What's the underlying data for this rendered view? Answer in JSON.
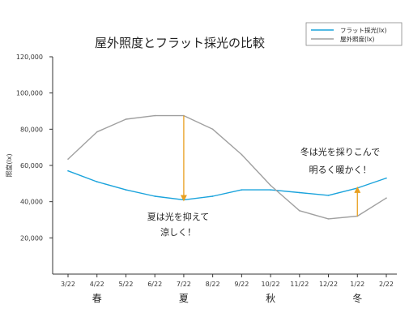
{
  "chart_data": {
    "type": "line",
    "title": "屋外照度とフラット採光の比較",
    "ylabel": "照度(lx)",
    "xlabel": "",
    "ylim": [
      0,
      120000
    ],
    "yticks": [
      20000,
      40000,
      60000,
      80000,
      100000,
      120000
    ],
    "ytick_labels": [
      "20,000",
      "40,000",
      "60,000",
      "80,000",
      "100,000",
      "120,000"
    ],
    "categories": [
      "3/22",
      "4/22",
      "5/22",
      "6/22",
      "7/22",
      "8/22",
      "9/22",
      "10/22",
      "11/22",
      "12/22",
      "1/22",
      "2/22"
    ],
    "seasons": [
      {
        "label": "春",
        "at": "4/22"
      },
      {
        "label": "夏",
        "at": "7/22"
      },
      {
        "label": "秋",
        "at": "10/22"
      },
      {
        "label": "冬",
        "at": "1/22"
      }
    ],
    "series": [
      {
        "name": "フラット採光(lx)",
        "color": "#1aa3dc",
        "values": [
          57000,
          51000,
          46500,
          43000,
          41000,
          43000,
          46500,
          46500,
          45000,
          43500,
          47500,
          53000
        ]
      },
      {
        "name": "屋外照度(lx)",
        "color": "#a0a0a0",
        "values": [
          63500,
          78500,
          85500,
          87500,
          87500,
          80000,
          66000,
          49000,
          35000,
          30500,
          32000,
          42000
        ]
      }
    ],
    "legend_position": "top-right",
    "grid": false,
    "annotations": [
      {
        "lines": [
          "夏は光を抑えて",
          "涼しく！"
        ],
        "category": "7/22",
        "from": 87500,
        "to": 41000,
        "arrow_color": "#e8a020"
      },
      {
        "lines": [
          "冬は光を採りこんで",
          "明るく暖かく！"
        ],
        "category": "1/22",
        "from": 32000,
        "to": 47500,
        "arrow_color": "#e8a020"
      }
    ]
  }
}
